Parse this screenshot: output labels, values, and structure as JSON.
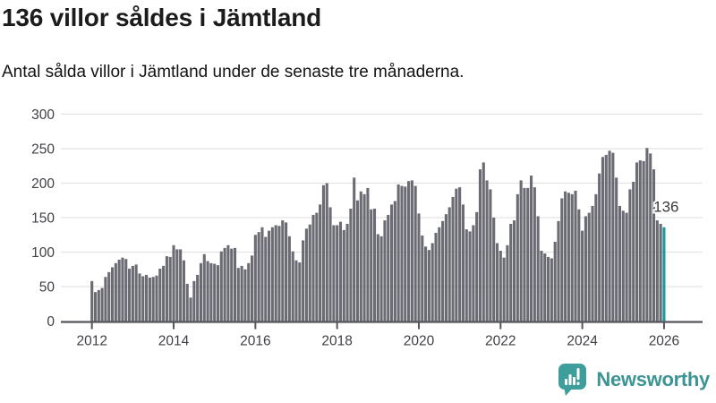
{
  "header": {
    "title": "136 villor såldes i Jämtland",
    "subtitle": "Antal sålda villor i Jämtland under de senaste tre månaderna."
  },
  "chart_data": {
    "type": "bar",
    "title": "136 villor såldes i Jämtland",
    "xlabel": "",
    "ylabel": "",
    "ylim": [
      0,
      300
    ],
    "y_ticks": [
      0,
      50,
      100,
      150,
      200,
      250,
      300
    ],
    "x_ticks": [
      {
        "label": "2012",
        "month_index": 0
      },
      {
        "label": "2014",
        "month_index": 24
      },
      {
        "label": "2016",
        "month_index": 48
      },
      {
        "label": "2018",
        "month_index": 72
      },
      {
        "label": "2020",
        "month_index": 96
      },
      {
        "label": "2022",
        "month_index": 120
      },
      {
        "label": "2024",
        "month_index": 144
      },
      {
        "label": "2026",
        "month_index": 168
      }
    ],
    "grid": "horizontal",
    "period": {
      "start": "2012-01",
      "end": "2026-01",
      "interval": "monthly, rolling 3-month total"
    },
    "series": [
      {
        "name": "Antal sålda villor",
        "values": [
          58,
          42,
          45,
          48,
          64,
          71,
          78,
          84,
          89,
          92,
          90,
          76,
          80,
          82,
          69,
          65,
          67,
          63,
          64,
          66,
          76,
          80,
          94,
          93,
          110,
          104,
          104,
          88,
          54,
          34,
          58,
          67,
          84,
          97,
          87,
          84,
          83,
          81,
          101,
          106,
          110,
          105,
          106,
          77,
          80,
          75,
          84,
          95,
          125,
          129,
          136,
          122,
          131,
          136,
          139,
          138,
          146,
          143,
          123,
          101,
          88,
          85,
          117,
          134,
          140,
          154,
          157,
          169,
          197,
          200,
          165,
          139,
          139,
          144,
          132,
          141,
          163,
          208,
          175,
          188,
          184,
          193,
          162,
          163,
          126,
          123,
          146,
          154,
          169,
          174,
          198,
          196,
          195,
          203,
          204,
          196,
          156,
          124,
          108,
          103,
          113,
          128,
          136,
          145,
          155,
          165,
          180,
          192,
          194,
          169,
          133,
          130,
          139,
          158,
          220,
          230,
          204,
          191,
          150,
          113,
          102,
          92,
          110,
          141,
          146,
          184,
          204,
          193,
          193,
          211,
          194,
          152,
          102,
          98,
          93,
          91,
          115,
          145,
          178,
          188,
          186,
          184,
          189,
          162,
          131,
          152,
          157,
          167,
          184,
          214,
          238,
          241,
          247,
          244,
          208,
          167,
          160,
          157,
          191,
          202,
          230,
          233,
          232,
          251,
          243,
          220,
          146,
          141,
          136
        ]
      }
    ],
    "highlight": {
      "month_index": 168,
      "value": 136,
      "label": "136"
    },
    "legend": "none",
    "colors": {
      "bar": "#6b6b74",
      "highlight": "#1a9a9b",
      "grid": "#e3e3e3",
      "axis": "#55555c",
      "tick_text": "#3f3f46",
      "annotation_text": "#3a3a3a"
    }
  },
  "branding": {
    "logo_text": "Newsworthy",
    "logo_icon": "bar-chart-speech-bubble-icon",
    "text_color": "#3d9494",
    "icon_color": "#3d9e9c"
  }
}
